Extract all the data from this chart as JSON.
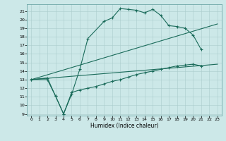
{
  "xlabel": "Humidex (Indice chaleur)",
  "bg_color": "#cce8e8",
  "line_color": "#1a6b5a",
  "xlim": [
    -0.5,
    23.5
  ],
  "ylim": [
    8.8,
    21.8
  ],
  "yticks": [
    9,
    10,
    11,
    12,
    13,
    14,
    15,
    16,
    17,
    18,
    19,
    20,
    21
  ],
  "xticks": [
    0,
    1,
    2,
    3,
    4,
    5,
    6,
    7,
    8,
    9,
    10,
    11,
    12,
    13,
    14,
    15,
    16,
    17,
    18,
    19,
    20,
    21,
    22,
    23
  ],
  "curve_upper": [
    [
      0,
      13.0
    ],
    [
      2,
      13.2
    ],
    [
      3,
      11.1
    ],
    [
      4,
      9.0
    ],
    [
      5,
      11.3
    ],
    [
      6,
      14.2
    ],
    [
      7,
      17.8
    ],
    [
      9,
      19.8
    ],
    [
      10,
      20.2
    ],
    [
      11,
      21.3
    ],
    [
      12,
      21.2
    ],
    [
      13,
      21.1
    ],
    [
      14,
      20.8
    ],
    [
      15,
      21.2
    ],
    [
      16,
      20.5
    ],
    [
      17,
      19.3
    ],
    [
      18,
      19.2
    ],
    [
      19,
      19.0
    ],
    [
      20,
      18.2
    ],
    [
      21,
      16.5
    ]
  ],
  "curve_linear1": [
    [
      0,
      13.0
    ],
    [
      23,
      19.5
    ]
  ],
  "curve_linear2": [
    [
      0,
      13.0
    ],
    [
      23,
      14.8
    ]
  ],
  "curve_lower": [
    [
      0,
      13.0
    ],
    [
      2,
      13.0
    ],
    [
      3,
      11.1
    ],
    [
      4,
      9.0
    ],
    [
      5,
      11.5
    ],
    [
      6,
      11.8
    ],
    [
      7,
      12.0
    ],
    [
      8,
      12.2
    ],
    [
      9,
      12.5
    ],
    [
      10,
      12.8
    ],
    [
      11,
      13.0
    ],
    [
      12,
      13.3
    ],
    [
      13,
      13.6
    ],
    [
      14,
      13.8
    ],
    [
      15,
      14.0
    ],
    [
      16,
      14.2
    ],
    [
      17,
      14.4
    ],
    [
      18,
      14.6
    ],
    [
      19,
      14.7
    ],
    [
      20,
      14.8
    ],
    [
      21,
      14.6
    ]
  ]
}
